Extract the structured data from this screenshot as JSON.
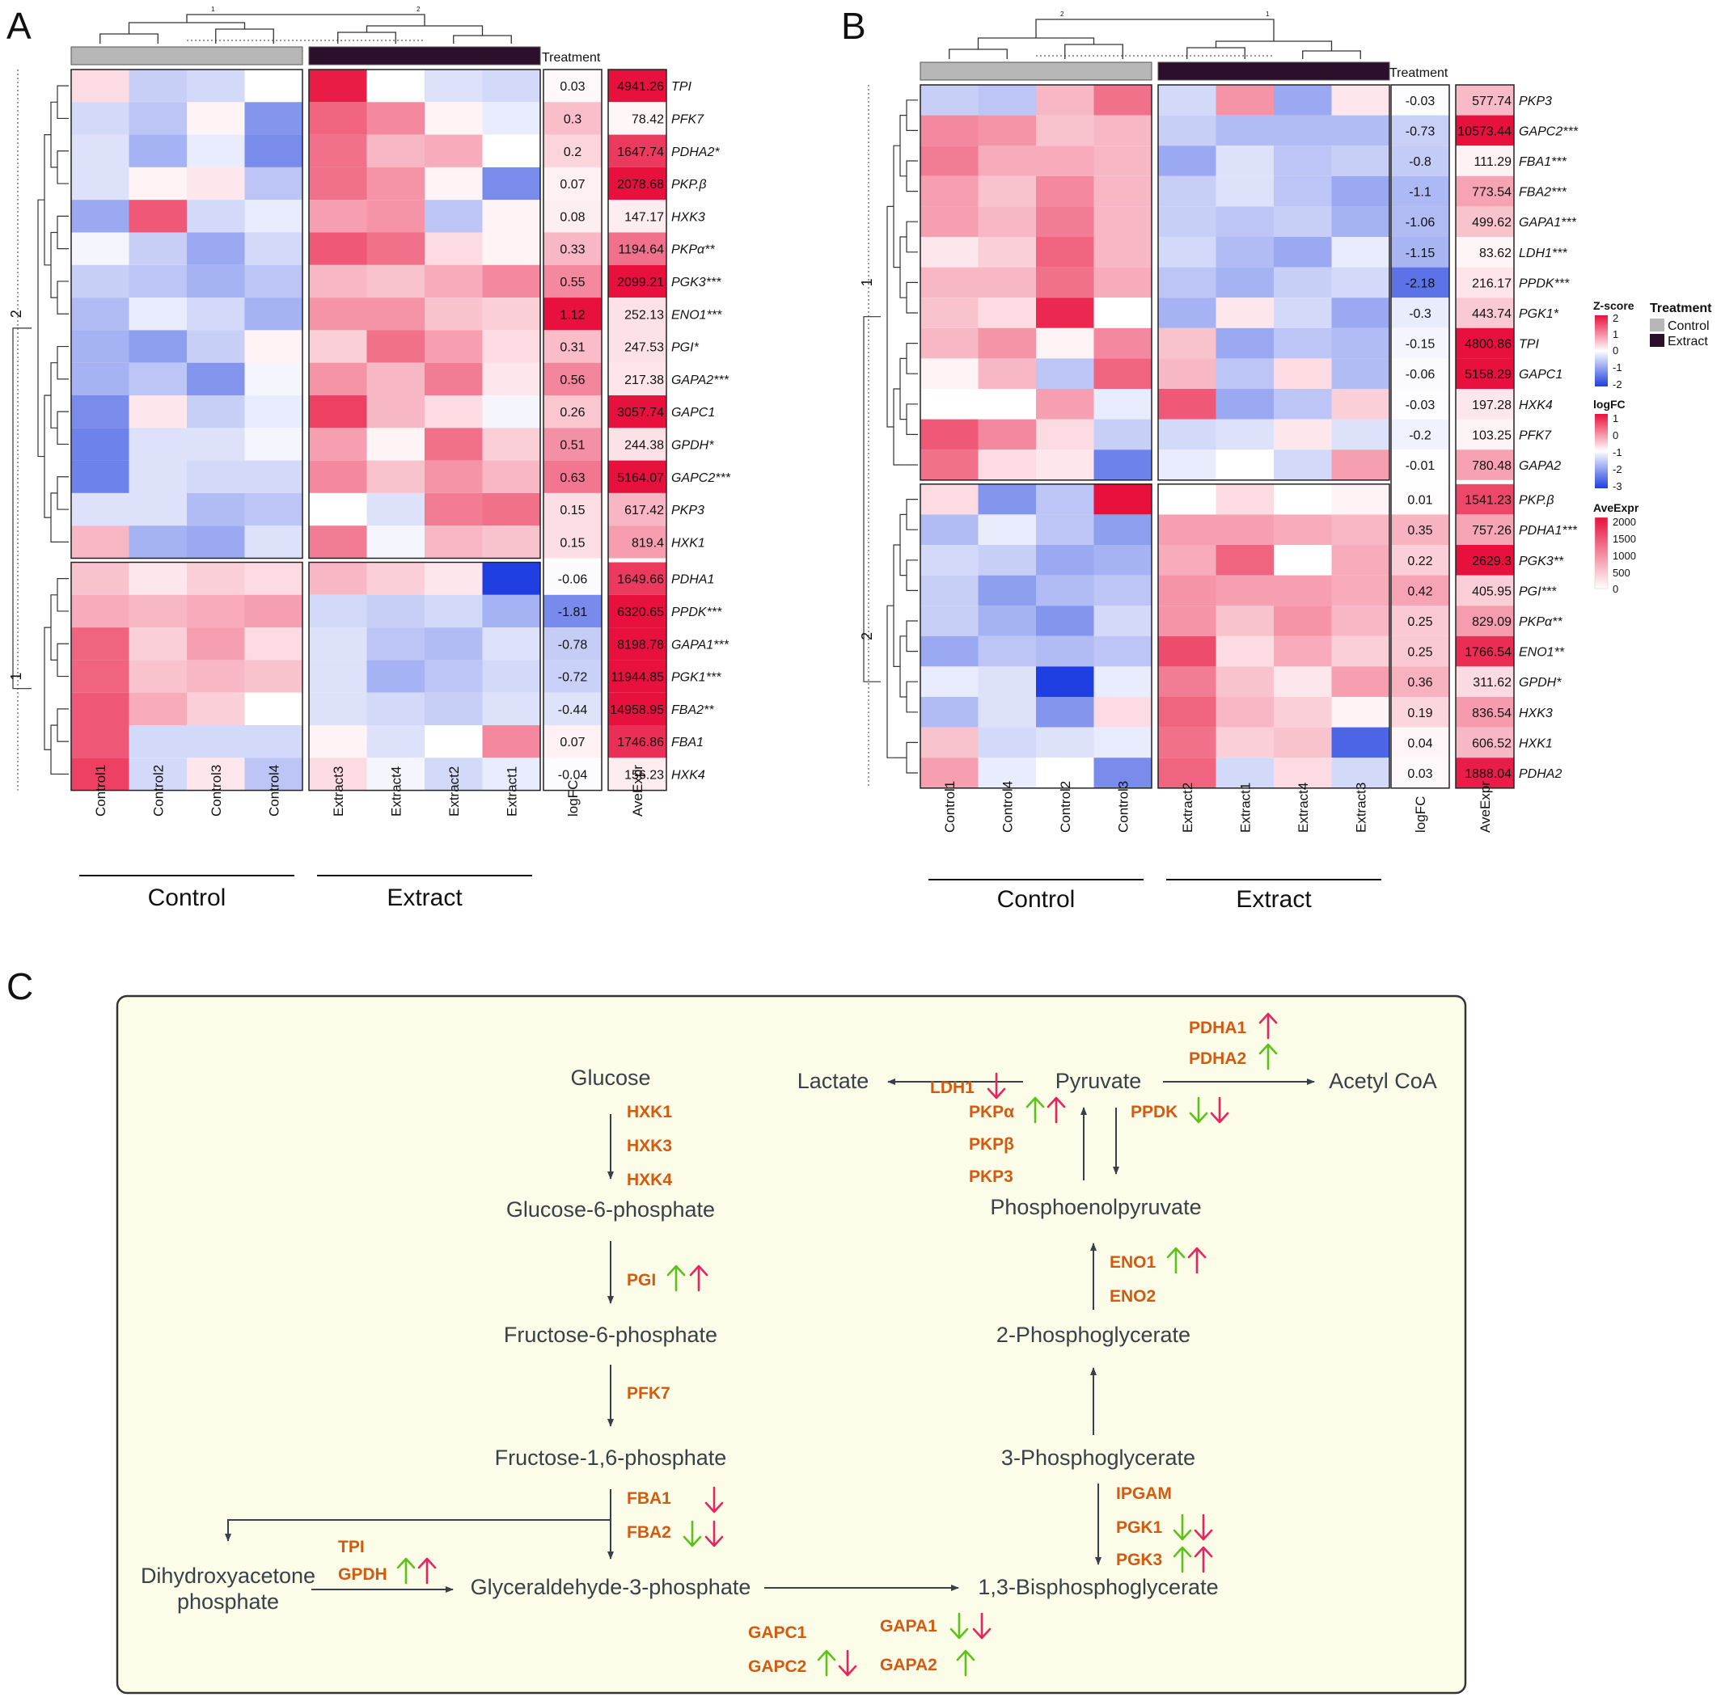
{
  "panel_labels": [
    "A",
    "B",
    "C"
  ],
  "colors": {
    "control": "#b7b7b7",
    "extract": "#2b0f2b",
    "up_green": "#5cc21a",
    "down_pink": "#e8245e",
    "gene": "#d35a0f",
    "panel_bg": "#fbfde8"
  },
  "legend": {
    "zscore_title": "Z-score",
    "zscore_ticks": [
      "2",
      "1",
      "0",
      "-1",
      "-2"
    ],
    "logfc_title": "logFC",
    "logfc_ticks": [
      "1",
      "0",
      "-1",
      "-2",
      "-3"
    ],
    "aveexpr_title": "AveExpr",
    "aveexpr_ticks": [
      "2000",
      "1500",
      "1000",
      "500",
      "0"
    ],
    "treatment_title": "Treatment",
    "treatment_items": [
      "Control",
      "Extract"
    ]
  },
  "chart_data": [
    {
      "type": "heatmap",
      "panel": "A",
      "treatment_label": "Treatment",
      "group_labels": [
        "Control",
        "Extract"
      ],
      "cluster_labels": [
        "2",
        "1"
      ],
      "top_tree_labels": [
        "1",
        "2"
      ],
      "columns": [
        "Control1",
        "Control2",
        "Control3",
        "Control4",
        "Extract3",
        "Extract4",
        "Extract2",
        "Extract1"
      ],
      "annotation_columns": [
        "logFC",
        "AveExpr"
      ],
      "rows": [
        {
          "gene": "TPI",
          "logFC": "0.03",
          "AveExpr": "4941.26",
          "z": [
            0.3,
            -0.5,
            -0.4,
            0.0,
            1.9,
            0.0,
            -0.3,
            -0.4
          ]
        },
        {
          "gene": "PFK7",
          "logFC": "0.3",
          "AveExpr": "78.42",
          "z": [
            -0.4,
            -0.6,
            0.1,
            -1.1,
            1.3,
            1.0,
            0.1,
            -0.2
          ]
        },
        {
          "gene": "PDHA2*",
          "logFC": "0.2",
          "AveExpr": "1647.74",
          "z": [
            -0.3,
            -0.8,
            -0.2,
            -1.2,
            1.2,
            0.6,
            0.7,
            0.0
          ]
        },
        {
          "gene": "PKP.β",
          "logFC": "0.07",
          "AveExpr": "2078.68",
          "z": [
            -0.3,
            0.1,
            0.2,
            -0.6,
            1.2,
            0.9,
            0.1,
            -1.2
          ]
        },
        {
          "gene": "HXK3",
          "logFC": "0.08",
          "AveExpr": "147.17",
          "z": [
            -0.9,
            1.4,
            -0.4,
            -0.2,
            0.8,
            0.9,
            -0.6,
            0.1
          ]
        },
        {
          "gene": "PKPα**",
          "logFC": "0.33",
          "AveExpr": "1194.64",
          "z": [
            -0.1,
            -0.5,
            -0.9,
            -0.4,
            1.4,
            1.2,
            0.3,
            0.1
          ]
        },
        {
          "gene": "PGK3***",
          "logFC": "0.55",
          "AveExpr": "2099.21",
          "z": [
            -0.5,
            -0.6,
            -0.8,
            -0.6,
            0.6,
            0.5,
            0.7,
            1.0
          ]
        },
        {
          "gene": "ENO1***",
          "logFC": "1.12",
          "AveExpr": "252.13",
          "z": [
            -0.7,
            -0.2,
            -0.4,
            -0.8,
            0.9,
            0.9,
            0.5,
            0.4
          ]
        },
        {
          "gene": "PGI*",
          "logFC": "0.31",
          "AveExpr": "247.53",
          "z": [
            -0.8,
            -1.0,
            -0.5,
            0.1,
            0.4,
            1.2,
            0.8,
            0.3
          ]
        },
        {
          "gene": "GAPA2***",
          "logFC": "0.56",
          "AveExpr": "217.38",
          "z": [
            -0.8,
            -0.6,
            -1.1,
            -0.1,
            0.9,
            0.6,
            1.1,
            0.2
          ]
        },
        {
          "gene": "GAPC1",
          "logFC": "0.26",
          "AveExpr": "3057.74",
          "z": [
            -1.2,
            0.2,
            -0.5,
            -0.2,
            1.6,
            0.6,
            0.3,
            -0.1
          ]
        },
        {
          "gene": "GPDH*",
          "logFC": "0.51",
          "AveExpr": "244.38",
          "z": [
            -1.3,
            -0.3,
            -0.3,
            -0.1,
            0.8,
            0.1,
            1.2,
            0.4
          ]
        },
        {
          "gene": "GAPC2***",
          "logFC": "0.63",
          "AveExpr": "5164.07",
          "z": [
            -1.3,
            -0.3,
            -0.4,
            -0.4,
            1.0,
            0.5,
            0.9,
            0.6
          ]
        },
        {
          "gene": "PKP3",
          "logFC": "0.15",
          "AveExpr": "617.42",
          "z": [
            -0.3,
            -0.3,
            -0.7,
            -0.6,
            0.0,
            -0.3,
            1.1,
            1.2
          ]
        },
        {
          "gene": "HXK1",
          "logFC": "0.15",
          "AveExpr": "819.4",
          "z": [
            0.6,
            -0.8,
            -0.9,
            -0.3,
            1.1,
            -0.1,
            0.6,
            0.5
          ]
        },
        {
          "gene": "PDHA1",
          "logFC": "-0.06",
          "AveExpr": "1649.66",
          "z": [
            0.5,
            0.2,
            0.4,
            0.3,
            0.6,
            0.4,
            0.2,
            -2.0
          ]
        },
        {
          "gene": "PPDK***",
          "logFC": "-1.81",
          "AveExpr": "6320.65",
          "z": [
            0.7,
            0.6,
            0.7,
            0.8,
            -0.4,
            -0.5,
            -0.4,
            -0.8
          ]
        },
        {
          "gene": "GAPA1***",
          "logFC": "-0.78",
          "AveExpr": "8198.78",
          "z": [
            1.3,
            0.4,
            0.8,
            0.3,
            -0.3,
            -0.6,
            -0.7,
            -0.3
          ]
        },
        {
          "gene": "PGK1***",
          "logFC": "-0.72",
          "AveExpr": "11944.85",
          "z": [
            1.3,
            0.5,
            0.6,
            0.5,
            -0.3,
            -0.8,
            -0.6,
            -0.4
          ]
        },
        {
          "gene": "FBA2**",
          "logFC": "-0.44",
          "AveExpr": "14958.95",
          "z": [
            1.4,
            0.7,
            0.4,
            0.0,
            -0.3,
            -0.4,
            -0.5,
            -0.3
          ]
        },
        {
          "gene": "FBA1",
          "logFC": "0.07",
          "AveExpr": "1746.86",
          "z": [
            1.4,
            -0.4,
            -0.4,
            -0.4,
            0.1,
            -0.3,
            0.0,
            1.0
          ]
        },
        {
          "gene": "HXK4",
          "logFC": "-0.04",
          "AveExpr": "156.23",
          "z": [
            1.6,
            -0.4,
            0.2,
            -0.6,
            0.3,
            -0.1,
            -0.4,
            -0.2
          ]
        }
      ]
    },
    {
      "type": "heatmap",
      "panel": "B",
      "treatment_label": "Treatment",
      "group_labels": [
        "Control",
        "Extract"
      ],
      "cluster_labels": [
        "1",
        "2"
      ],
      "top_tree_labels": [
        "2",
        "1"
      ],
      "columns": [
        "Control1",
        "Control4",
        "Control2",
        "Control3",
        "Extract2",
        "Extract1",
        "Extract4",
        "Extract3"
      ],
      "annotation_columns": [
        "logFC",
        "AveExpr"
      ],
      "rows": [
        {
          "gene": "PKP3",
          "logFC": "-0.03",
          "AveExpr": "577.74",
          "z": [
            -0.5,
            -0.6,
            0.6,
            1.2,
            -0.4,
            0.9,
            -0.9,
            0.2
          ]
        },
        {
          "gene": "GAPC2***",
          "logFC": "-0.73",
          "AveExpr": "10573.44",
          "z": [
            1.0,
            0.9,
            0.5,
            0.6,
            -0.5,
            -0.7,
            -0.7,
            -0.7
          ]
        },
        {
          "gene": "FBA1***",
          "logFC": "-0.8",
          "AveExpr": "111.29",
          "z": [
            1.1,
            0.7,
            0.7,
            0.6,
            -0.9,
            -0.3,
            -0.6,
            -0.5
          ]
        },
        {
          "gene": "FBA2***",
          "logFC": "-1.1",
          "AveExpr": "773.54",
          "z": [
            0.8,
            0.5,
            1.0,
            0.6,
            -0.5,
            -0.3,
            -0.6,
            -0.9
          ]
        },
        {
          "gene": "GAPA1***",
          "logFC": "-1.06",
          "AveExpr": "499.62",
          "z": [
            0.8,
            0.6,
            1.1,
            0.6,
            -0.5,
            -0.6,
            -0.5,
            -0.8
          ]
        },
        {
          "gene": "LDH1***",
          "logFC": "-1.15",
          "AveExpr": "83.62",
          "z": [
            0.2,
            0.4,
            1.3,
            0.6,
            -0.4,
            -0.7,
            -0.9,
            -0.2
          ]
        },
        {
          "gene": "PPDK***",
          "logFC": "-2.18",
          "AveExpr": "216.17",
          "z": [
            0.6,
            0.6,
            1.2,
            0.7,
            -0.6,
            -0.8,
            -0.5,
            -0.4
          ]
        },
        {
          "gene": "PGK1*",
          "logFC": "-0.3",
          "AveExpr": "443.74",
          "z": [
            0.5,
            0.3,
            1.8,
            0.0,
            -0.8,
            0.2,
            -0.4,
            -0.9
          ]
        },
        {
          "gene": "TPI",
          "logFC": "-0.15",
          "AveExpr": "4800.86",
          "z": [
            0.6,
            0.9,
            0.1,
            1.0,
            0.5,
            -0.9,
            -0.6,
            -0.7
          ]
        },
        {
          "gene": "GAPC1",
          "logFC": "-0.06",
          "AveExpr": "5158.29",
          "z": [
            0.1,
            0.6,
            -0.6,
            1.3,
            0.6,
            -0.6,
            0.3,
            -0.7
          ]
        },
        {
          "gene": "HXK4",
          "logFC": "-0.03",
          "AveExpr": "197.28",
          "z": [
            0.0,
            0.0,
            0.8,
            -0.2,
            1.4,
            -0.9,
            -0.6,
            0.4
          ]
        },
        {
          "gene": "PFK7",
          "logFC": "-0.2",
          "AveExpr": "103.25",
          "z": [
            1.4,
            1.0,
            0.3,
            -0.5,
            -0.4,
            -0.3,
            0.2,
            -0.3
          ]
        },
        {
          "gene": "GAPA2",
          "logFC": "-0.01",
          "AveExpr": "780.48",
          "z": [
            1.2,
            0.3,
            0.2,
            -1.3,
            -0.2,
            0.0,
            -0.4,
            0.8
          ]
        },
        {
          "gene": "PKP.β",
          "logFC": "0.01",
          "AveExpr": "1541.23",
          "z": [
            0.3,
            -1.1,
            -0.6,
            2.0,
            0.0,
            0.3,
            0.0,
            0.1
          ]
        },
        {
          "gene": "PDHA1***",
          "logFC": "0.35",
          "AveExpr": "757.26",
          "z": [
            -0.7,
            -0.2,
            -0.6,
            -1.0,
            0.8,
            0.8,
            0.7,
            0.6
          ]
        },
        {
          "gene": "PGK3**",
          "logFC": "0.22",
          "AveExpr": "2629.3",
          "z": [
            -0.4,
            -0.5,
            -0.9,
            -0.8,
            0.7,
            1.3,
            0.0,
            0.7
          ]
        },
        {
          "gene": "PGI***",
          "logFC": "0.42",
          "AveExpr": "405.95",
          "z": [
            -0.5,
            -1.0,
            -0.7,
            -0.6,
            0.9,
            0.8,
            0.8,
            0.7
          ]
        },
        {
          "gene": "PKPα**",
          "logFC": "0.25",
          "AveExpr": "829.09",
          "z": [
            -0.5,
            -0.8,
            -1.1,
            -0.4,
            0.9,
            0.5,
            0.9,
            0.6
          ]
        },
        {
          "gene": "ENO1**",
          "logFC": "0.25",
          "AveExpr": "1766.54",
          "z": [
            -0.9,
            -0.6,
            -0.7,
            -0.6,
            1.5,
            0.3,
            0.7,
            0.4
          ]
        },
        {
          "gene": "GPDH*",
          "logFC": "0.36",
          "AveExpr": "311.62",
          "z": [
            -0.2,
            -0.3,
            -2.0,
            -0.2,
            1.1,
            0.5,
            0.2,
            0.8
          ]
        },
        {
          "gene": "HXK3",
          "logFC": "0.19",
          "AveExpr": "836.54",
          "z": [
            -0.7,
            -0.3,
            -1.1,
            0.3,
            1.3,
            0.6,
            0.4,
            0.1
          ]
        },
        {
          "gene": "HXK1",
          "logFC": "0.04",
          "AveExpr": "606.52",
          "z": [
            0.5,
            -0.4,
            -0.3,
            -0.2,
            1.2,
            0.4,
            0.5,
            -1.6
          ]
        },
        {
          "gene": "PDHA2",
          "logFC": "0.03",
          "AveExpr": "1888.04",
          "z": [
            0.8,
            -0.2,
            0.0,
            -1.2,
            1.3,
            -0.4,
            0.3,
            -0.4
          ]
        }
      ]
    }
  ],
  "pathway": {
    "nodes": {
      "glucose": "Glucose",
      "g6p": "Glucose-6-phosphate",
      "f6p": "Fructose-6-phosphate",
      "f16p": "Fructose-1,6-phosphate",
      "dhap1": "Dihydroxyacetone",
      "dhap2": "phosphate",
      "g3p": "Glyceraldehyde-3-phosphate",
      "bpg": "1,3-Bisphosphoglycerate",
      "pg3": "3-Phosphoglycerate",
      "pg2": "2-Phosphoglycerate",
      "pep": "Phosphoenolpyruvate",
      "pyruvate": "Pyruvate",
      "lactate": "Lactate",
      "acetyl": "Acetyl CoA"
    },
    "genes": {
      "hxk1": "HXK1",
      "hxk3": "HXK3",
      "hxk4": "HXK4",
      "pgi": "PGI",
      "pfk7": "PFK7",
      "fba1": "FBA1",
      "fba2": "FBA2",
      "tpi": "TPI",
      "gpdh": "GPDH",
      "gapc1": "GAPC1",
      "gapc2": "GAPC2",
      "gapa1": "GAPA1",
      "gapa2": "GAPA2",
      "ipgam": "IPGAM",
      "pgk1": "PGK1",
      "pgk3": "PGK3",
      "eno1": "ENO1",
      "eno2": "ENO2",
      "ldh1": "LDH1",
      "pkpa": "PKPα",
      "pkpb": "PKPβ",
      "pkp3": "PKP3",
      "ppdk": "PPDK",
      "pdha1": "PDHA1",
      "pdha2": "PDHA2"
    }
  }
}
